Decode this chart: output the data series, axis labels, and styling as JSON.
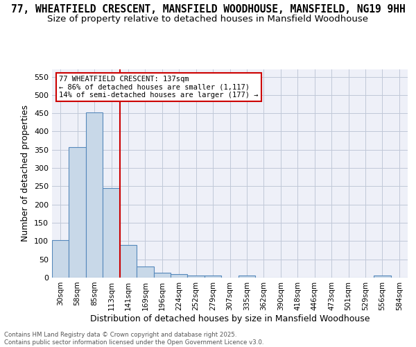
{
  "title": "77, WHEATFIELD CRESCENT, MANSFIELD WOODHOUSE, MANSFIELD, NG19 9HH",
  "subtitle": "Size of property relative to detached houses in Mansfield Woodhouse",
  "xlabel": "Distribution of detached houses by size in Mansfield Woodhouse",
  "ylabel": "Number of detached properties",
  "bins": [
    "30sqm",
    "58sqm",
    "85sqm",
    "113sqm",
    "141sqm",
    "169sqm",
    "196sqm",
    "224sqm",
    "252sqm",
    "279sqm",
    "307sqm",
    "335sqm",
    "362sqm",
    "390sqm",
    "418sqm",
    "446sqm",
    "473sqm",
    "501sqm",
    "529sqm",
    "556sqm",
    "584sqm"
  ],
  "values": [
    103,
    357,
    452,
    246,
    89,
    30,
    13,
    9,
    5,
    5,
    0,
    5,
    0,
    0,
    0,
    0,
    0,
    0,
    0,
    5,
    0
  ],
  "bar_color": "#c8d8e8",
  "bar_edge_color": "#5588bb",
  "vline_pos": 3.5,
  "vline_color": "#cc0000",
  "annotation_text": "77 WHEATFIELD CRESCENT: 137sqm\n← 86% of detached houses are smaller (1,117)\n14% of semi-detached houses are larger (177) →",
  "annotation_box_color": "#cc0000",
  "ylim": [
    0,
    570
  ],
  "yticks": [
    0,
    50,
    100,
    150,
    200,
    250,
    300,
    350,
    400,
    450,
    500,
    550
  ],
  "grid_color": "#c0c8d8",
  "background_color": "#eef0f8",
  "footer": "Contains HM Land Registry data © Crown copyright and database right 2025.\nContains public sector information licensed under the Open Government Licence v3.0.",
  "title_fontsize": 10.5,
  "subtitle_fontsize": 9.5,
  "xlabel_fontsize": 9,
  "ylabel_fontsize": 9
}
